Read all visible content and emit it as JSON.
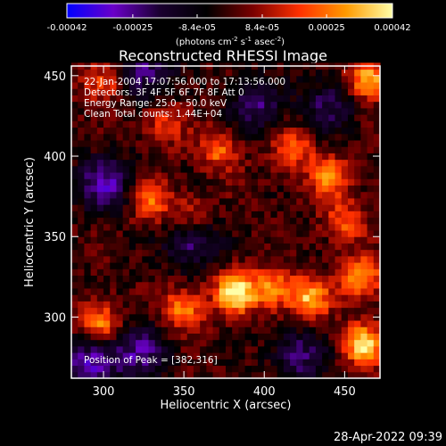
{
  "chart_data": {
    "type": "heatmap",
    "title": "Reconstructed RHESSI Image",
    "xlabel": "Heliocentric X (arcsec)",
    "ylabel": "Heliocentric Y (arcsec)",
    "xlim": [
      280,
      472
    ],
    "ylim": [
      262,
      456
    ],
    "x_ticks": [
      300,
      350,
      400,
      450
    ],
    "y_ticks": [
      300,
      350,
      400,
      450
    ],
    "x_tick_labels": [
      "300",
      "350",
      "400",
      "450"
    ],
    "y_tick_labels": [
      "300",
      "350",
      "400",
      "450"
    ],
    "colorbar": {
      "range": [
        -0.00042,
        0.00042
      ],
      "tick_values": [
        -0.00042,
        -0.00025,
        -8.4e-05,
        8.4e-05,
        0.00025,
        0.00042
      ],
      "tick_labels": [
        "-0.00042",
        "-0.00025",
        "-8.4e-05",
        "8.4e-05",
        "0.00025",
        "0.00042"
      ],
      "units_text": "(photons cm",
      "units_exp1": "-2",
      "units_mid": " s",
      "units_exp2": "-1",
      "units_mid2": " asec",
      "units_exp3": "-2",
      "units_close": ")",
      "colormap": [
        "#0000ff",
        "#6a00c8",
        "#1a0030",
        "#000000",
        "#7a0000",
        "#ff3000",
        "#ff9a00",
        "#ffffa8"
      ]
    },
    "annotations": [
      "22-Jan-2004 17:07:56.000 to 17:13:56.000",
      "Detectors: 3F 4F 5F 6F 7F 8F  Att 0",
      "Energy Range: 25.0 - 50.0 keV",
      "Clean     Total counts: 1.44E+04"
    ],
    "peak_label": "Position of Peak = [382,316]",
    "peak": [
      382,
      316
    ],
    "bright_sources": [
      {
        "x": 382,
        "y": 316,
        "value": 0.00042
      },
      {
        "x": 462,
        "y": 283,
        "value": 0.00038
      },
      {
        "x": 465,
        "y": 448,
        "value": 0.00036
      },
      {
        "x": 428,
        "y": 312,
        "value": 0.00033
      },
      {
        "x": 297,
        "y": 296,
        "value": 0.0003
      },
      {
        "x": 460,
        "y": 325,
        "value": 0.00032
      },
      {
        "x": 350,
        "y": 305,
        "value": 0.00028
      },
      {
        "x": 405,
        "y": 318,
        "value": 0.00027
      },
      {
        "x": 440,
        "y": 388,
        "value": 0.00026
      },
      {
        "x": 330,
        "y": 372,
        "value": 0.00024
      },
      {
        "x": 372,
        "y": 404,
        "value": 0.00023
      },
      {
        "x": 300,
        "y": 446,
        "value": 0.00022
      },
      {
        "x": 418,
        "y": 405,
        "value": 0.00022
      },
      {
        "x": 355,
        "y": 362,
        "value": 0.0002
      },
      {
        "x": 338,
        "y": 420,
        "value": 0.00018
      },
      {
        "x": 450,
        "y": 360,
        "value": 0.00021
      }
    ],
    "dark_regions": [
      {
        "x": 292,
        "y": 272,
        "value": -0.0003
      },
      {
        "x": 300,
        "y": 383,
        "value": -0.00028
      },
      {
        "x": 355,
        "y": 348,
        "value": -0.00026
      },
      {
        "x": 325,
        "y": 452,
        "value": -0.00025
      },
      {
        "x": 395,
        "y": 432,
        "value": -0.00022
      },
      {
        "x": 440,
        "y": 432,
        "value": -0.0002
      },
      {
        "x": 323,
        "y": 279,
        "value": -0.00024
      },
      {
        "x": 422,
        "y": 276,
        "value": -0.00022
      }
    ]
  },
  "footer": {
    "date": "28-Apr-2022 09:39"
  }
}
